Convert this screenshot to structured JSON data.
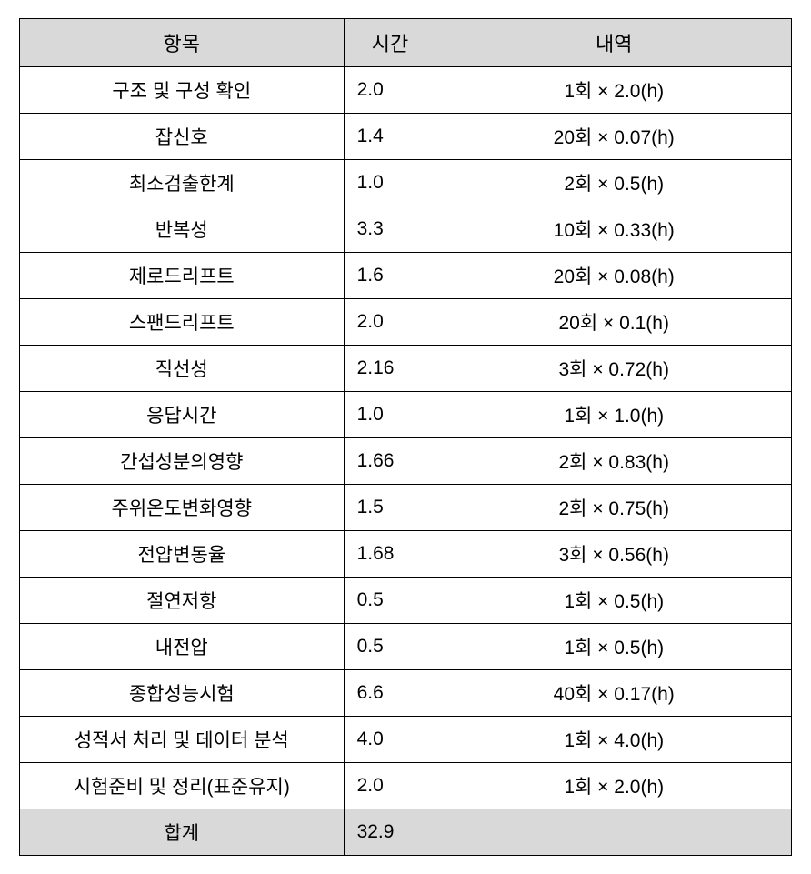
{
  "table": {
    "headers": {
      "item": "항목",
      "time": "시간",
      "detail": "내역"
    },
    "rows": [
      {
        "item": "구조 및 구성 확인",
        "time": "2.0",
        "detail": "1회 × 2.0(h)"
      },
      {
        "item": "잡신호",
        "time": "1.4",
        "detail": "20회 × 0.07(h)"
      },
      {
        "item": "최소검출한계",
        "time": "1.0",
        "detail": "2회 × 0.5(h)"
      },
      {
        "item": "반복성",
        "time": "3.3",
        "detail": "10회 × 0.33(h)"
      },
      {
        "item": "제로드리프트",
        "time": "1.6",
        "detail": "20회 × 0.08(h)"
      },
      {
        "item": "스팬드리프트",
        "time": "2.0",
        "detail": "20회 × 0.1(h)"
      },
      {
        "item": "직선성",
        "time": "2.16",
        "detail": "3회 × 0.72(h)"
      },
      {
        "item": "응답시간",
        "time": "1.0",
        "detail": "1회 × 1.0(h)"
      },
      {
        "item": "간섭성분의영향",
        "time": "1.66",
        "detail": "2회 × 0.83(h)"
      },
      {
        "item": "주위온도변화영향",
        "time": "1.5",
        "detail": "2회 × 0.75(h)"
      },
      {
        "item": "전압변동율",
        "time": "1.68",
        "detail": "3회 × 0.56(h)"
      },
      {
        "item": "절연저항",
        "time": "0.5",
        "detail": "1회 × 0.5(h)"
      },
      {
        "item": "내전압",
        "time": "0.5",
        "detail": "1회 × 0.5(h)"
      },
      {
        "item": "종합성능시험",
        "time": "6.6",
        "detail": "40회 × 0.17(h)"
      },
      {
        "item": "성적서 처리 및 데이터 분석",
        "time": "4.0",
        "detail": "1회 × 4.0(h)"
      },
      {
        "item": "시험준비 및 정리(표준유지)",
        "time": "2.0",
        "detail": "1회 × 2.0(h)"
      }
    ],
    "total": {
      "label": "합계",
      "time": "32.9",
      "detail": ""
    },
    "styling": {
      "header_bg": "#d9d9d9",
      "total_bg": "#d9d9d9",
      "border_color": "#000000",
      "font_family": "Malgun Gothic",
      "header_fontsize": 22,
      "cell_fontsize": 21,
      "col_widths_pct": [
        42,
        12,
        46
      ],
      "col_align": [
        "center",
        "left",
        "center"
      ]
    }
  }
}
